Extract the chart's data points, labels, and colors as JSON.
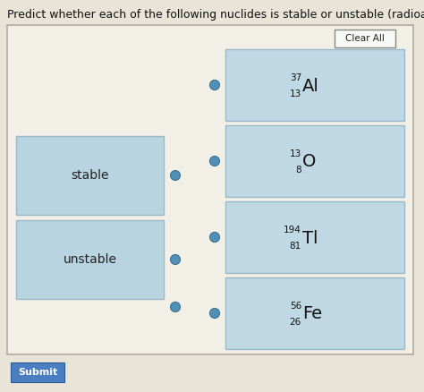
{
  "title": "Predict whether each of the following nuclides is stable or unstable (radioactive).",
  "background_color": "#e8e4d8",
  "outer_box_color": "#f0ede4",
  "category_box_color": "#b8d4e0",
  "nuclide_box_color": "#c0d8e4",
  "categories": [
    "stable",
    "unstable"
  ],
  "nuclides": [
    {
      "symbol": "Al",
      "mass": "37",
      "atomic": "13"
    },
    {
      "symbol": "O",
      "mass": "13",
      "atomic": "8"
    },
    {
      "symbol": "Tl",
      "mass": "194",
      "atomic": "81"
    },
    {
      "symbol": "Fe",
      "mass": "56",
      "atomic": "26"
    }
  ],
  "clear_all_label": "Clear All",
  "submit_label": "Submit",
  "submit_bg": "#4a7ec0",
  "submit_text_color": "#ffffff",
  "dot_color": "#5090b8",
  "dot_edge_color": "#3a7090",
  "box_edge_color": "#9ab8c8",
  "outer_edge_color": "#b0aba0",
  "title_fontsize": 9.0,
  "cat_fontsize": 10,
  "sym_fontsize": 14,
  "sub_fontsize": 7.5,
  "btn_fontsize": 7.5,
  "submit_fontsize": 8.0
}
